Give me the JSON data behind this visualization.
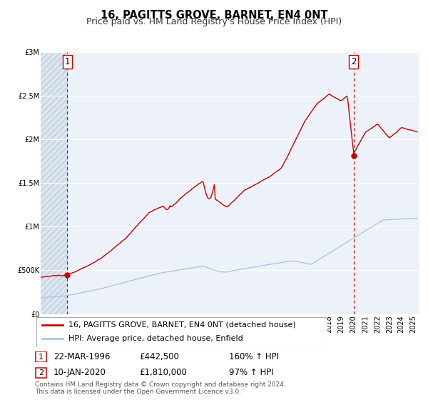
{
  "title": "16, PAGITTS GROVE, BARNET, EN4 0NT",
  "subtitle": "Price paid vs. HM Land Registry's House Price Index (HPI)",
  "hpi_line_color": "#aec6e8",
  "property_line_color": "#cc0000",
  "marker_color": "#cc0000",
  "vline_color": "#cc0000",
  "background_color": "#ffffff",
  "plot_bg_color": "#edf2fa",
  "grid_color": "#ffffff",
  "ylim": [
    0,
    3000000
  ],
  "xlim_start": 1994.0,
  "xlim_end": 2025.5,
  "yticks": [
    0,
    500000,
    1000000,
    1500000,
    2000000,
    2500000,
    3000000
  ],
  "ytick_labels": [
    "£0",
    "£500K",
    "£1M",
    "£1.5M",
    "£2M",
    "£2.5M",
    "£3M"
  ],
  "legend_label_property": "16, PAGITTS GROVE, BARNET, EN4 0NT (detached house)",
  "legend_label_hpi": "HPI: Average price, detached house, Enfield",
  "point1_x": 1996.22,
  "point1_y": 442500,
  "point1_label": "1",
  "point2_x": 2020.03,
  "point2_y": 1810000,
  "point2_label": "2",
  "annotation1_date": "22-MAR-1996",
  "annotation1_price": "£442,500",
  "annotation1_hpi": "160% ↑ HPI",
  "annotation2_date": "10-JAN-2020",
  "annotation2_price": "£1,810,000",
  "annotation2_hpi": "97% ↑ HPI",
  "footer_line1": "Contains HM Land Registry data © Crown copyright and database right 2024.",
  "footer_line2": "This data is licensed under the Open Government Licence v3.0.",
  "title_fontsize": 10.5,
  "subtitle_fontsize": 9,
  "tick_fontsize": 7,
  "legend_fontsize": 8,
  "annotation_fontsize": 8.5,
  "footer_fontsize": 6.5
}
